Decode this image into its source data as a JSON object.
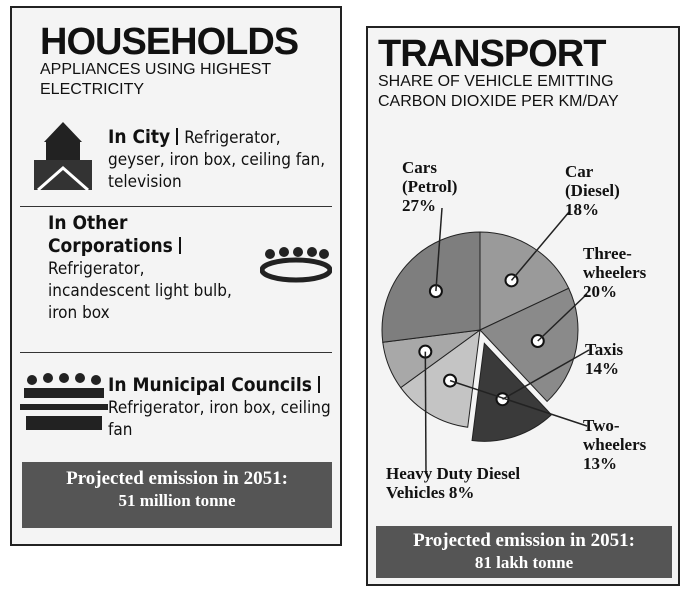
{
  "households": {
    "title": "HOUSEHOLDS",
    "subtitle": "APPLIANCES USING HIGHEST ELECTRICITY",
    "items": [
      {
        "heading": "In City",
        "text": "Refrigerator, geyser, iron box, ceiling fan, television"
      },
      {
        "heading": "In Other Corporations",
        "text": "Refrigerator, incandescent light bulb, iron box"
      },
      {
        "heading": "In Municipal Councils",
        "text": "Refrigerator, iron box, ceiling fan"
      }
    ],
    "footer": {
      "label": "Projected emission in 2051:",
      "value": "51 million tonne"
    }
  },
  "chart_data": {
    "type": "pie",
    "title": "TRANSPORT",
    "subtitle": "SHARE OF VEHICLE EMITTING CARBON DIOXIDE PER KM/DAY",
    "categories": [
      "Car (Diesel)",
      "Three-wheelers",
      "Taxis",
      "Two-wheelers",
      "Heavy Duty Diesel Vehicles",
      "Cars (Petrol)"
    ],
    "values": [
      18,
      20,
      14,
      13,
      8,
      27
    ],
    "value_labels": [
      "18%",
      "20%",
      "14%",
      "13%",
      "8%",
      "27%"
    ],
    "colors": [
      "#9a9a9a",
      "#8a8a8a",
      "#3a3a3a",
      "#c4c4c4",
      "#a8a8a8",
      "#7e7e7e"
    ],
    "footer": {
      "label": "Projected emission in 2051:",
      "value": "81 lakh tonne"
    }
  }
}
